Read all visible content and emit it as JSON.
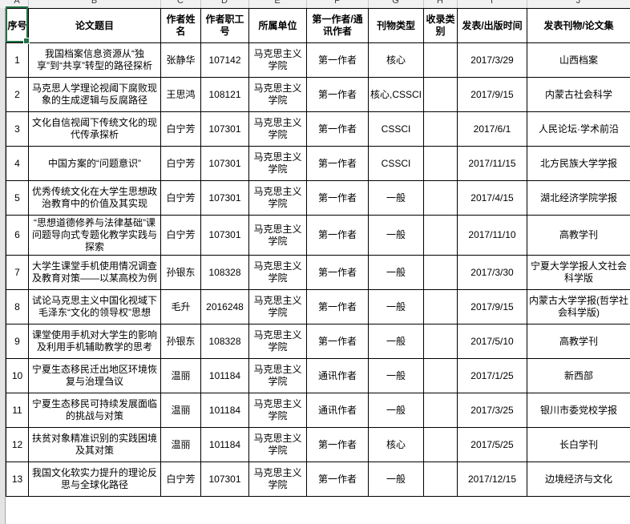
{
  "app": {
    "selection_color": "#217346",
    "column_letters": [
      "A",
      "B",
      "C",
      "D",
      "E",
      "F",
      "G",
      "H",
      "I",
      "J"
    ]
  },
  "table": {
    "headers": [
      "序号",
      "论文题目",
      "作者姓名",
      "作者职工号",
      "所属单位",
      "第一作者/通讯作者",
      "刊物类型",
      "收录类别",
      "发表/出版时间",
      "发表刊物/论文集"
    ],
    "rows": [
      [
        "1",
        "我国档案信息资源从“独享”到“共享”转型的路径探析",
        "张静华",
        "107142",
        "马克思主义学院",
        "第一作者",
        "核心",
        "",
        "2017/3/29",
        "山西档案"
      ],
      [
        "2",
        "马克思人学理论视阈下腐败现象的生成逻辑与反腐路径",
        "王思鸿",
        "108121",
        "马克思主义学院",
        "第一作者",
        "核心,CSSCI",
        "",
        "2017/9/15",
        "内蒙古社会科学"
      ],
      [
        "3",
        "文化自信视阈下传统文化的现代传承探析",
        "白宁芳",
        "107301",
        "马克思主义学院",
        "第一作者",
        "CSSCI",
        "",
        "2017/6/1",
        "人民论坛·学术前沿"
      ],
      [
        "4",
        "中国方案的“问题意识”",
        "白宁芳",
        "107301",
        "马克思主义学院",
        "第一作者",
        "CSSCI",
        "",
        "2017/11/15",
        "北方民族大学学报"
      ],
      [
        "5",
        "优秀传统文化在大学生思想政治教育中的价值及其实现",
        "白宁芳",
        "107301",
        "马克思主义学院",
        "第一作者",
        "一般",
        "",
        "2017/4/15",
        "湖北经济学院学报"
      ],
      [
        "6",
        "“思想道德修养与法律基础”课问题导向式专题化教学实践与探索",
        "白宁芳",
        "107301",
        "马克思主义学院",
        "第一作者",
        "一般",
        "",
        "2017/11/10",
        "高教学刊"
      ],
      [
        "7",
        "大学生课堂手机使用情况调查及教育对策——以某高校为例",
        "孙银东",
        "108328",
        "马克思主义学院",
        "第一作者",
        "一般",
        "",
        "2017/3/30",
        "宁夏大学学报人文社会科学版"
      ],
      [
        "8",
        "试论马克思主义中国化视域下毛泽东“文化的领导权”思想",
        "毛升",
        "2016248",
        "马克思主义学院",
        "第一作者",
        "一般",
        "",
        "2017/9/15",
        "内蒙古大学学报(哲学社会科学版)"
      ],
      [
        "9",
        "课堂使用手机对大学生的影响及利用手机辅助教学的思考",
        "孙银东",
        "108328",
        "马克思主义学院",
        "第一作者",
        "一般",
        "",
        "2017/5/10",
        "高教学刊"
      ],
      [
        "10",
        "宁夏生态移民迁出地区环境恢复与治理刍议",
        "温丽",
        "101184",
        "马克思主义学院",
        "通讯作者",
        "一般",
        "",
        "2017/1/25",
        "新西部"
      ],
      [
        "11",
        "宁夏生态移民可持续发展面临的挑战与对策",
        "温丽",
        "101184",
        "马克思主义学院",
        "通讯作者",
        "一般",
        "",
        "2017/3/25",
        "银川市委党校学报"
      ],
      [
        "12",
        "扶贫对象精准识别的实践困境及其对策",
        "温丽",
        "101184",
        "马克思主义学院",
        "第一作者",
        "核心",
        "",
        "2017/5/25",
        "长白学刊"
      ],
      [
        "13",
        "我国文化软实力提升的理论反思与全球化路径",
        "白宁芳",
        "107301",
        "马克思主义学院",
        "第一作者",
        "一般",
        "",
        "2017/12/15",
        "边境经济与文化"
      ]
    ]
  }
}
